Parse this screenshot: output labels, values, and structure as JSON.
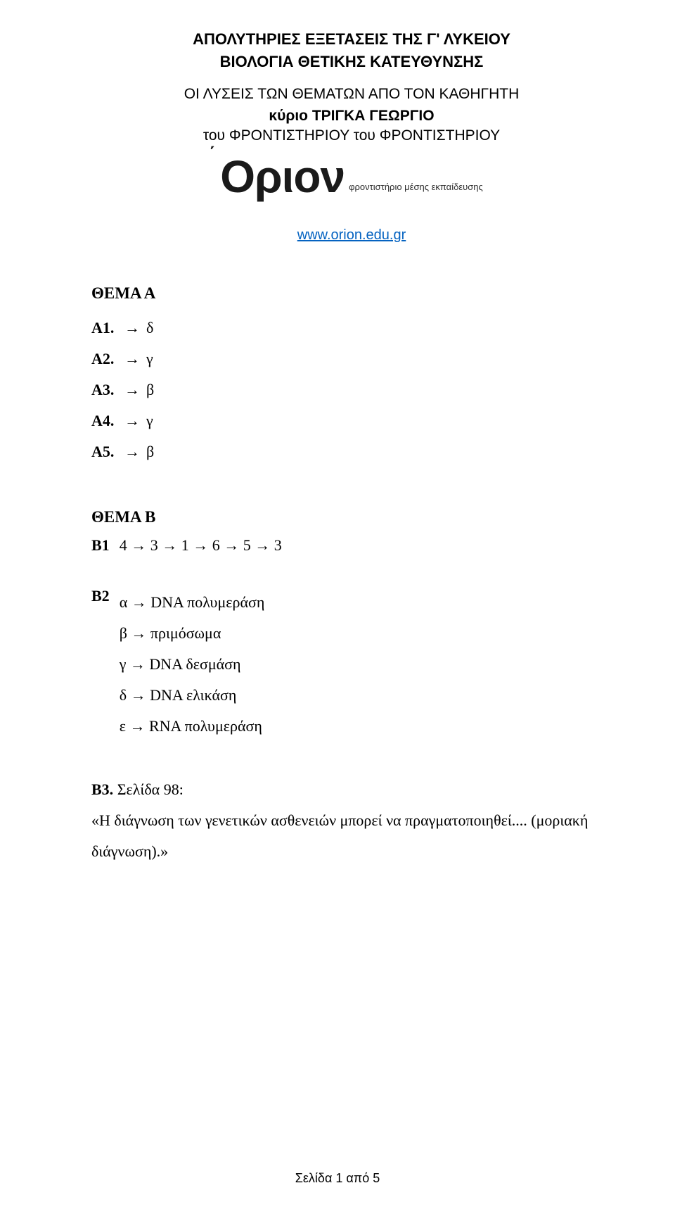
{
  "header": {
    "title_line1": "ΑΠΟΛΥΤΗΡΙΕΣ ΕΞΕΤΑΣΕΙΣ ΤΗΣ Γ' ΛΥΚΕΙΟΥ",
    "title_line2": "ΒΙΟΛΟΓΙΑ ΘΕΤΙΚΗΣ ΚΑΤΕΥΘΥΝΣΗΣ",
    "subtitle": "ΟΙ ΛΥΣΕΙΣ ΤΩΝ ΘΕΜΑΤΩΝ ΑΠΟ ΤΟΝ ΚΑΘΗΓΗΤΗ",
    "author": "κύριο ΤΡΙΓΚΑ ΓΕΩΡΓΙΟ",
    "source": "του ΦΡΟΝΤΙΣΤΗΡΙΟΥ του ΦΡΟΝΤΙΣΤΗΡΙΟΥ",
    "logo_text": "Οριον",
    "logo_accent": "΄",
    "logo_tagline": "φροντιστήριο μέσης εκπαίδευσης",
    "link_text": "www.orion.edu.gr"
  },
  "thema_a": {
    "heading": "ΘΕΜΑ Α",
    "items": [
      {
        "label": "Α1.",
        "answer": "δ"
      },
      {
        "label": "Α2.",
        "answer": "γ"
      },
      {
        "label": "Α3.",
        "answer": "β"
      },
      {
        "label": "Α4.",
        "answer": "γ"
      },
      {
        "label": "Α5.",
        "answer": "β"
      }
    ]
  },
  "thema_b": {
    "heading": "ΘΕΜΑ Β",
    "b1": {
      "label": "Β1",
      "sequence": [
        "4",
        "3",
        "1",
        "6",
        "5",
        "3"
      ]
    },
    "b2": {
      "label": "Β2",
      "items": [
        {
          "key": "α",
          "value": "DNA πολυμεράση"
        },
        {
          "key": "β",
          "value": "πριμόσωμα"
        },
        {
          "key": "γ",
          "value": "DNA δεσμάση"
        },
        {
          "key": "δ",
          "value": "DNA ελικάση"
        },
        {
          "key": "ε",
          "value": "RNA πολυμεράση"
        }
      ]
    },
    "b3": {
      "label": "Β3.",
      "reference": "Σελίδα 98:",
      "quote": "«Η διάγνωση των γενετικών ασθενειών μπορεί να πραγματοποιηθεί.... (μοριακή διάγνωση).»"
    }
  },
  "glyphs": {
    "arrow": "→"
  },
  "footer": {
    "text": "Σελίδα 1 από 5"
  },
  "colors": {
    "text": "#000000",
    "link": "#0563c1",
    "background": "#ffffff",
    "logo": "#1a1a1a",
    "tagline": "#2d2d2d"
  },
  "typography": {
    "title_fontsize": 22,
    "subtitle_fontsize": 21,
    "body_fontsize": 22,
    "logo_fontsize": 64,
    "tagline_fontsize": 13,
    "link_fontsize": 20,
    "footer_fontsize": 18,
    "serif_family": "Times New Roman",
    "sans_family": "Arial"
  }
}
